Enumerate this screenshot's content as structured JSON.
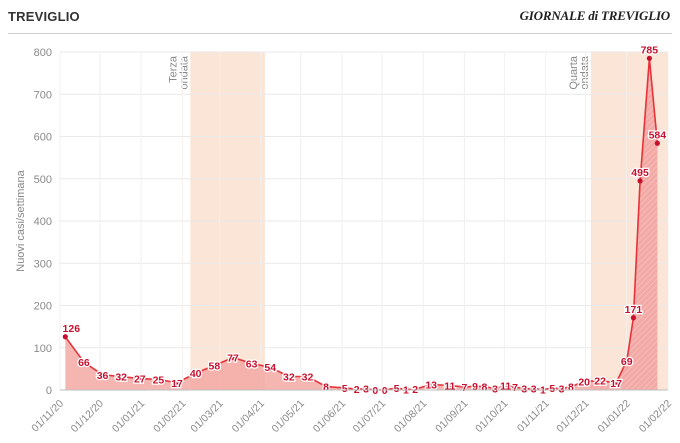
{
  "header": {
    "title": "TREVIGLIO",
    "brand": "GIORNALE di TREVIGLIO"
  },
  "colors": {
    "area": "#f3a9a5",
    "line": "#e8323a",
    "marker": "#c8102e",
    "band": "#fbe5d6",
    "label": "#c8102e"
  },
  "chart_data": {
    "type": "area",
    "title": "",
    "xlabel": "",
    "ylabel": "Nuovi casi/settimana",
    "ylim": [
      0,
      800
    ],
    "yticks": [
      0,
      100,
      200,
      300,
      400,
      500,
      600,
      700,
      800
    ],
    "xlim": [
      "2020-11-01",
      "2022-02-01"
    ],
    "xticks": [
      "2020-11-01",
      "2020-12-01",
      "2021-01-01",
      "2021-02-01",
      "2021-03-01",
      "2021-04-01",
      "2021-05-01",
      "2021-06-01",
      "2021-07-01",
      "2021-08-01",
      "2021-09-01",
      "2021-10-01",
      "2021-11-01",
      "2021-12-01",
      "2022-01-01",
      "2022-02-01"
    ],
    "xtick_labels": [
      "01/11/20",
      "01/12/20",
      "01/01/21",
      "01/02/21",
      "01/03/21",
      "01/04/21",
      "01/05/21",
      "01/06/21",
      "01/07/21",
      "01/08/21",
      "01/09/21",
      "01/10/21",
      "01/11/21",
      "01/12/21",
      "01/01/22",
      "01/02/22"
    ],
    "grid": true,
    "bands": [
      {
        "label": "Terza ondata",
        "start": "2021-02-07",
        "end": "2021-04-04"
      },
      {
        "label": "Quarta ondata",
        "start": "2021-12-05",
        "end": "2022-02-01"
      }
    ],
    "points": [
      {
        "date": "2020-11-05",
        "value": 126
      },
      {
        "date": "2020-11-19",
        "value": 66
      },
      {
        "date": "2020-12-03",
        "value": 36
      },
      {
        "date": "2020-12-17",
        "value": 32
      },
      {
        "date": "2020-12-31",
        "value": 27
      },
      {
        "date": "2021-01-14",
        "value": 25
      },
      {
        "date": "2021-01-28",
        "value": 17
      },
      {
        "date": "2021-02-11",
        "value": 40
      },
      {
        "date": "2021-02-25",
        "value": 58
      },
      {
        "date": "2021-03-11",
        "value": 77
      },
      {
        "date": "2021-03-25",
        "value": 63
      },
      {
        "date": "2021-04-08",
        "value": 54
      },
      {
        "date": "2021-04-22",
        "value": 32
      },
      {
        "date": "2021-05-06",
        "value": 32
      },
      {
        "date": "2021-05-20",
        "value": 8
      },
      {
        "date": "2021-06-03",
        "value": 5
      },
      {
        "date": "2021-06-12",
        "value": 2
      },
      {
        "date": "2021-06-19",
        "value": 3
      },
      {
        "date": "2021-06-26",
        "value": 0
      },
      {
        "date": "2021-07-03",
        "value": 0
      },
      {
        "date": "2021-07-12",
        "value": 5
      },
      {
        "date": "2021-07-19",
        "value": 1
      },
      {
        "date": "2021-07-26",
        "value": 2
      },
      {
        "date": "2021-08-07",
        "value": 13
      },
      {
        "date": "2021-08-21",
        "value": 11
      },
      {
        "date": "2021-09-01",
        "value": 7
      },
      {
        "date": "2021-09-09",
        "value": 9
      },
      {
        "date": "2021-09-16",
        "value": 8
      },
      {
        "date": "2021-09-24",
        "value": 3
      },
      {
        "date": "2021-10-02",
        "value": 11
      },
      {
        "date": "2021-10-09",
        "value": 7
      },
      {
        "date": "2021-10-16",
        "value": 3
      },
      {
        "date": "2021-10-23",
        "value": 3
      },
      {
        "date": "2021-10-30",
        "value": 1
      },
      {
        "date": "2021-11-06",
        "value": 5
      },
      {
        "date": "2021-11-13",
        "value": 3
      },
      {
        "date": "2021-11-20",
        "value": 8
      },
      {
        "date": "2021-11-30",
        "value": 20
      },
      {
        "date": "2021-12-12",
        "value": 22
      },
      {
        "date": "2021-12-24",
        "value": 17
      },
      {
        "date": "2022-01-01",
        "value": 69
      },
      {
        "date": "2022-01-06",
        "value": 171
      },
      {
        "date": "2022-01-11",
        "value": 495
      },
      {
        "date": "2022-01-18",
        "value": 785
      },
      {
        "date": "2022-01-24",
        "value": 584
      }
    ]
  }
}
